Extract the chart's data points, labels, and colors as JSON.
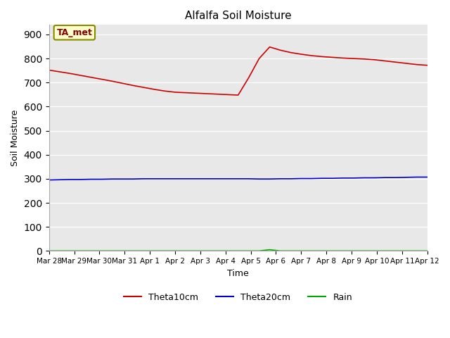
{
  "title": "Alfalfa Soil Moisture",
  "xlabel": "Time",
  "ylabel": "Soil Moisture",
  "annotation": "TA_met",
  "ylim": [
    0,
    940
  ],
  "yticks": [
    0,
    100,
    200,
    300,
    400,
    500,
    600,
    700,
    800,
    900
  ],
  "x_labels": [
    "Mar 28",
    "Mar 29",
    "Mar 30",
    "Mar 31",
    "Apr 1",
    "Apr 2",
    "Apr 3",
    "Apr 4",
    "Apr 5",
    "Apr 6",
    "Apr 7",
    "Apr 8",
    "Apr 9",
    "Apr 10",
    "Apr 11",
    "Apr 12"
  ],
  "theta10cm": [
    752,
    745,
    738,
    730,
    722,
    714,
    706,
    697,
    688,
    680,
    672,
    665,
    660,
    658,
    656,
    654,
    652,
    650,
    648,
    720,
    800,
    848,
    835,
    825,
    818,
    812,
    808,
    805,
    802,
    800,
    798,
    795,
    790,
    785,
    780,
    775,
    772
  ],
  "theta20cm": [
    295,
    296,
    297,
    297,
    298,
    298,
    299,
    299,
    299,
    300,
    300,
    300,
    300,
    300,
    300,
    300,
    300,
    300,
    300,
    300,
    299,
    299,
    300,
    300,
    301,
    301,
    302,
    302,
    303,
    303,
    304,
    304,
    305,
    305,
    306,
    307,
    307
  ],
  "rain": [
    0,
    0,
    0,
    0,
    0,
    0,
    0,
    0,
    0,
    0,
    0,
    0,
    0,
    0,
    0,
    0,
    0,
    0,
    0,
    0,
    0,
    5,
    0,
    0,
    0,
    0,
    0,
    0,
    0,
    0,
    0,
    0,
    0,
    0,
    0,
    0,
    0
  ],
  "theta10_color": "#cc0000",
  "theta20_color": "#0000cc",
  "rain_color": "#00aa00",
  "bg_color": "#ffffff",
  "plot_bg": "#e8e8e8",
  "grid_color": "#ffffff",
  "legend_labels": [
    "Theta10cm",
    "Theta20cm",
    "Rain"
  ],
  "annotation_color": "#880000",
  "annotation_bg": "#ffffcc",
  "annotation_edge": "#888800"
}
